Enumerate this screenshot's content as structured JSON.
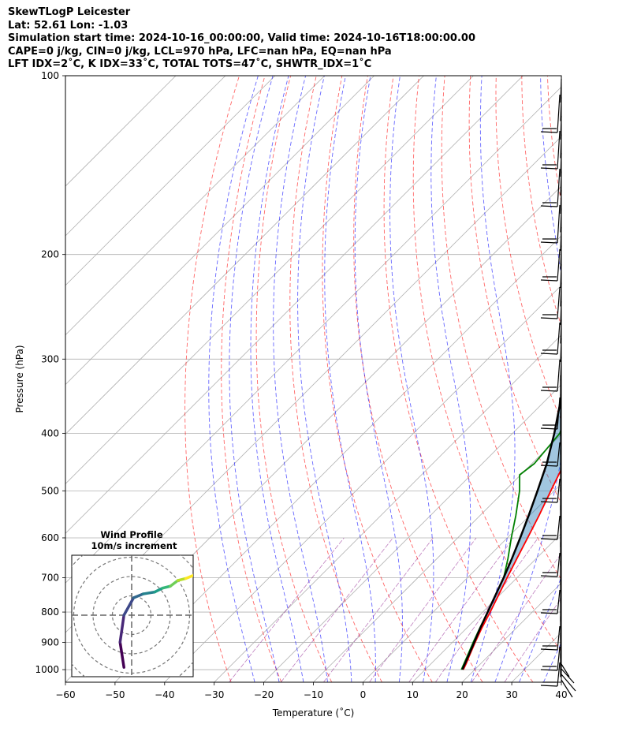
{
  "header": {
    "line1": "SkewTLogP Leicester",
    "line2": "Lat: 52.61   Lon: -1.03",
    "line3": "Simulation start time: 2024-10-16_00:00:00, Valid time: 2024-10-16T18:00:00.00",
    "line4": "CAPE=0 j/kg, CIN=0 j/kg, LCL=970 hPa, LFC=nan hPa, EQ=nan hPa",
    "line5": "LFT IDX=2˚C, K IDX=33˚C, TOTAL TOTS=47˚C, SHWTR_IDX=1˚C"
  },
  "chart_data": {
    "type": "line",
    "title": "SkewTLogP Leicester",
    "xlabel": "Temperature (˚C)",
    "ylabel": "Pressure (hPa)",
    "xlim": [
      -60,
      40
    ],
    "ylim": [
      1050,
      100
    ],
    "y_scale": "log",
    "grid": true,
    "x_ticks": [
      "−60",
      "−50",
      "−40",
      "−30",
      "−20",
      "−10",
      "0",
      "10",
      "20",
      "30",
      "40"
    ],
    "y_ticks": [
      "1000",
      "900",
      "800",
      "700",
      "600",
      "500",
      "400",
      "300",
      "200",
      "100"
    ],
    "series": [
      {
        "color": "#ff0000",
        "points": [
          [
            1000,
            17.7
          ],
          [
            975,
            17
          ],
          [
            950,
            16.2
          ],
          [
            900,
            14.6
          ],
          [
            850,
            13
          ],
          [
            800,
            11.5
          ],
          [
            750,
            9.8
          ],
          [
            700,
            8
          ],
          [
            650,
            6.1
          ],
          [
            600,
            4.1
          ],
          [
            550,
            1.9
          ],
          [
            500,
            -0.7
          ],
          [
            450,
            -3.5
          ],
          [
            400,
            -6.5
          ],
          [
            350,
            -10.5
          ],
          [
            300,
            -15.6
          ],
          [
            280,
            -19
          ],
          [
            250,
            -25
          ],
          [
            230,
            -28.5
          ],
          [
            210,
            -33
          ],
          [
            200,
            -38
          ],
          [
            180,
            -44
          ],
          [
            160,
            -47
          ],
          [
            140,
            -51.5
          ],
          [
            130,
            -54.5
          ],
          [
            120,
            -57.5
          ],
          [
            110,
            -62.5
          ],
          [
            100,
            -68
          ]
        ]
      },
      {
        "color": "#008000",
        "points": [
          [
            1000,
            17.3
          ],
          [
            950,
            15.8
          ],
          [
            900,
            14.2
          ],
          [
            850,
            12.6
          ],
          [
            800,
            11
          ],
          [
            750,
            9.2
          ],
          [
            700,
            7.3
          ],
          [
            650,
            4.3
          ],
          [
            600,
            0.8
          ],
          [
            550,
            -2.8
          ],
          [
            500,
            -7
          ],
          [
            470,
            -10.2
          ],
          [
            450,
            -9.5
          ],
          [
            400,
            -10.5
          ],
          [
            350,
            -15
          ],
          [
            300,
            -23
          ],
          [
            280,
            -26.5
          ],
          [
            270,
            -29
          ],
          [
            250,
            -30
          ],
          [
            230,
            -33
          ],
          [
            200,
            -39
          ],
          [
            190,
            -42
          ],
          [
            185,
            -42.3
          ],
          [
            170,
            -47
          ],
          [
            160,
            -51
          ],
          [
            150,
            -55
          ],
          [
            140,
            -61
          ],
          [
            130,
            -66
          ],
          [
            120,
            -70
          ],
          [
            110,
            -76
          ],
          [
            100,
            -82
          ]
        ]
      },
      {
        "color": "#000000",
        "points": [
          [
            1000,
            17.5
          ],
          [
            950,
            16
          ],
          [
            900,
            14.4
          ],
          [
            850,
            12.7
          ],
          [
            800,
            11
          ],
          [
            750,
            9.2
          ],
          [
            700,
            7.3
          ],
          [
            650,
            5.1
          ],
          [
            600,
            2.6
          ],
          [
            550,
            -0.2
          ],
          [
            500,
            -3.4
          ],
          [
            450,
            -7
          ],
          [
            400,
            -11.6
          ],
          [
            350,
            -17.2
          ],
          [
            300,
            -24.5
          ],
          [
            250,
            -33
          ],
          [
            200,
            -45
          ],
          [
            150,
            -60
          ],
          [
            120,
            -70
          ],
          [
            100,
            -79
          ]
        ]
      }
    ],
    "hodograph": {
      "title": "Wind Profile",
      "subtitle": "10m/s increment",
      "points": [
        [
          -0.4,
          -2.7
        ],
        [
          -0.6,
          -1.4
        ],
        [
          -0.4,
          0
        ],
        [
          0.1,
          0.9
        ],
        [
          0.6,
          1.1
        ],
        [
          1.2,
          1.2
        ],
        [
          1.6,
          1.4
        ],
        [
          2,
          1.5
        ],
        [
          2.4,
          1.8
        ],
        [
          2.8,
          1.9
        ],
        [
          3.3,
          2.1
        ],
        [
          3.7,
          2.3
        ],
        [
          4.2,
          2.5
        ]
      ]
    }
  }
}
